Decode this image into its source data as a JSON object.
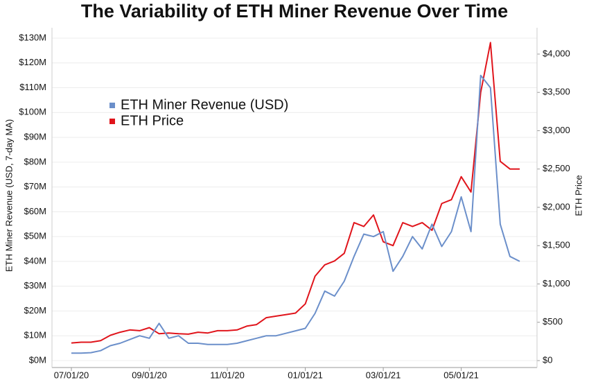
{
  "chart_data": {
    "type": "line",
    "title": "The Variability of ETH Miner Revenue Over Time",
    "ylabel": "ETH Miner Revenue (USD, 7-day MA)",
    "y2label": "ETH Price",
    "categories": [
      "07/01/20",
      null,
      null,
      null,
      null,
      null,
      null,
      null,
      "09/01/20",
      null,
      null,
      null,
      null,
      null,
      null,
      null,
      "11/01/20",
      null,
      null,
      null,
      null,
      null,
      null,
      null,
      "01/01/21",
      null,
      null,
      null,
      null,
      null,
      null,
      null,
      "03/01/21",
      null,
      null,
      null,
      null,
      null,
      null,
      null,
      "05/01/21",
      null,
      null,
      null,
      null,
      null,
      null
    ],
    "series": [
      {
        "name": "ETH Miner Revenue (USD)",
        "color": "#6b8fca",
        "axis": "y",
        "values": [
          3000000,
          3000000,
          3200000,
          4000000,
          6000000,
          7000000,
          8500000,
          10000000,
          9000000,
          15000000,
          9000000,
          10000000,
          7000000,
          7000000,
          6500000,
          6500000,
          6500000,
          7000000,
          8000000,
          9000000,
          10000000,
          10000000,
          11000000,
          12000000,
          13000000,
          19000000,
          28000000,
          26000000,
          32000000,
          42000000,
          51000000,
          50000000,
          52000000,
          36000000,
          42000000,
          50000000,
          45000000,
          55000000,
          46000000,
          52000000,
          66000000,
          52000000,
          115000000,
          110000000,
          55000000,
          42000000,
          40000000
        ]
      },
      {
        "name": "ETH Price",
        "color": "#e0141b",
        "axis": "y2",
        "values": [
          230,
          240,
          240,
          260,
          330,
          370,
          400,
          390,
          430,
          350,
          360,
          350,
          345,
          370,
          360,
          390,
          390,
          400,
          450,
          470,
          560,
          580,
          600,
          620,
          740,
          1100,
          1250,
          1300,
          1400,
          1800,
          1750,
          1900,
          1550,
          1500,
          1800,
          1750,
          1800,
          1700,
          2050,
          2100,
          2400,
          2200,
          3500,
          4150,
          2600,
          2500,
          2500
        ]
      }
    ],
    "ylim": [
      0,
      130000000
    ],
    "yticks": [
      {
        "value": 0,
        "label": "$0M"
      },
      {
        "value": 10000000,
        "label": "$10M"
      },
      {
        "value": 20000000,
        "label": "$20M"
      },
      {
        "value": 30000000,
        "label": "$30M"
      },
      {
        "value": 40000000,
        "label": "$40M"
      },
      {
        "value": 50000000,
        "label": "$50M"
      },
      {
        "value": 60000000,
        "label": "$60M"
      },
      {
        "value": 70000000,
        "label": "$70M"
      },
      {
        "value": 80000000,
        "label": "$80M"
      },
      {
        "value": 90000000,
        "label": "$90M"
      },
      {
        "value": 100000000,
        "label": "$100M"
      },
      {
        "value": 110000000,
        "label": "$110M"
      },
      {
        "value": 120000000,
        "label": "$120M"
      },
      {
        "value": 130000000,
        "label": "$130M"
      }
    ],
    "y2lim": [
      0,
      4208
    ],
    "y2ticks": [
      {
        "value": 0,
        "label": "$0"
      },
      {
        "value": 500,
        "label": "$500"
      },
      {
        "value": 1000,
        "label": "$1,000"
      },
      {
        "value": 1500,
        "label": "$1,500"
      },
      {
        "value": 2000,
        "label": "$2,000"
      },
      {
        "value": 2500,
        "label": "$2,500"
      },
      {
        "value": 3000,
        "label": "$3,000"
      },
      {
        "value": 3500,
        "label": "$3,500"
      },
      {
        "value": 4000,
        "label": "$4,000"
      }
    ],
    "grid": true,
    "legend": "upper left"
  }
}
